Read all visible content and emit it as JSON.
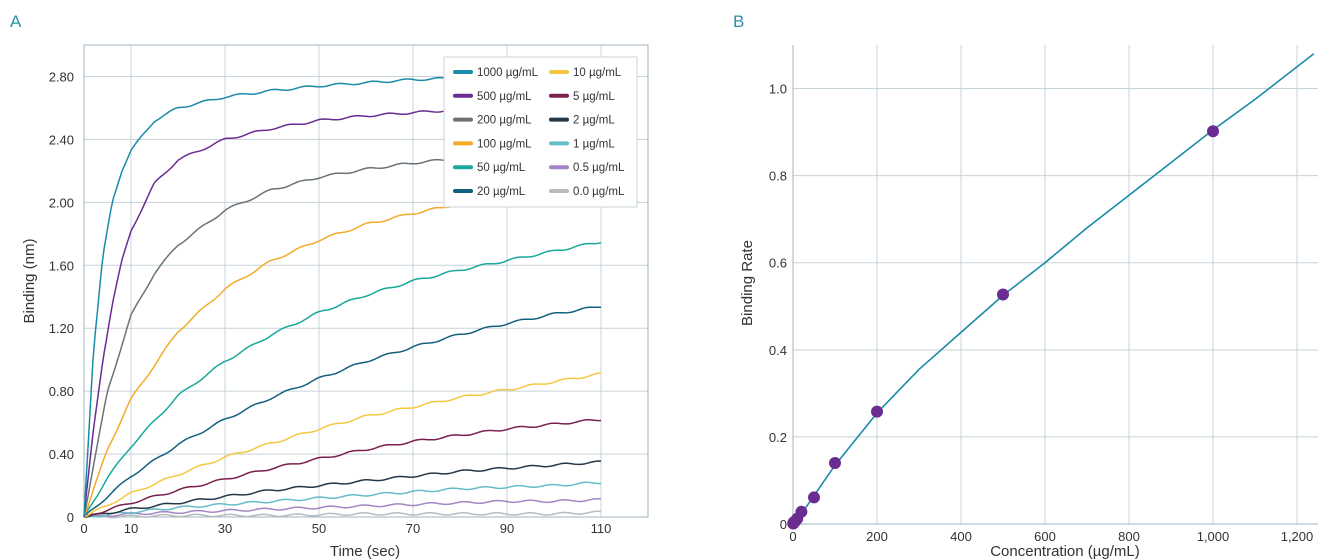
{
  "panels": {
    "a_label": "A",
    "b_label": "B"
  },
  "chart_data": [
    {
      "type": "line",
      "panel": "A",
      "xlabel": "Time (sec)",
      "ylabel": "Binding (nm)",
      "xlim": [
        0,
        120
      ],
      "ylim": [
        0,
        3.0
      ],
      "x_ticks": [
        0,
        10,
        30,
        50,
        70,
        90,
        110
      ],
      "x_tick_labels": [
        "0",
        "10",
        "30",
        "50",
        "70",
        "90",
        "110"
      ],
      "y_ticks": [
        0,
        0.4,
        0.8,
        1.2,
        1.6,
        2.0,
        2.4,
        2.8
      ],
      "y_tick_labels": [
        "0",
        "0.40",
        "0.80",
        "1.20",
        "1.60",
        "2.00",
        "2.40",
        "2.80"
      ],
      "grid": true,
      "legend_position": "top-right",
      "series": [
        {
          "name": "1000 µg/mL",
          "color": "#1a8aa8",
          "x": [
            0,
            2,
            4,
            6,
            8,
            10,
            15,
            20,
            30,
            40,
            50,
            60,
            70,
            80,
            90,
            100,
            110
          ],
          "y": [
            0,
            1.05,
            1.65,
            2.0,
            2.2,
            2.33,
            2.52,
            2.6,
            2.67,
            2.71,
            2.74,
            2.76,
            2.78,
            2.79,
            2.8,
            2.81,
            2.82
          ]
        },
        {
          "name": "500 µg/mL",
          "color": "#6a2c91",
          "x": [
            0,
            2,
            4,
            6,
            8,
            10,
            15,
            20,
            30,
            40,
            50,
            60,
            70,
            80,
            90,
            100,
            110
          ],
          "y": [
            0,
            0.55,
            1.0,
            1.35,
            1.62,
            1.82,
            2.12,
            2.27,
            2.4,
            2.47,
            2.52,
            2.55,
            2.57,
            2.59,
            2.6,
            2.61,
            2.62
          ]
        },
        {
          "name": "200 µg/mL",
          "color": "#6c7378",
          "x": [
            0,
            5,
            10,
            15,
            20,
            30,
            40,
            50,
            60,
            70,
            80,
            90,
            100,
            110
          ],
          "y": [
            0,
            0.8,
            1.28,
            1.55,
            1.73,
            1.95,
            2.08,
            2.16,
            2.21,
            2.25,
            2.28,
            2.31,
            2.33,
            2.35
          ]
        },
        {
          "name": "100 µg/mL",
          "color": "#f2ab2a",
          "x": [
            0,
            5,
            10,
            20,
            30,
            40,
            50,
            60,
            70,
            80,
            90,
            100,
            110
          ],
          "y": [
            0,
            0.43,
            0.75,
            1.18,
            1.45,
            1.63,
            1.76,
            1.86,
            1.93,
            1.99,
            2.04,
            2.08,
            2.11
          ]
        },
        {
          "name": "50 µg/mL",
          "color": "#1aa89a",
          "x": [
            0,
            5,
            10,
            20,
            30,
            40,
            50,
            60,
            70,
            80,
            90,
            100,
            110
          ],
          "y": [
            0,
            0.25,
            0.45,
            0.77,
            0.99,
            1.16,
            1.3,
            1.41,
            1.5,
            1.57,
            1.63,
            1.69,
            1.75
          ]
        },
        {
          "name": "20 µg/mL",
          "color": "#13607e",
          "x": [
            0,
            10,
            20,
            30,
            40,
            50,
            60,
            70,
            80,
            90,
            100,
            110
          ],
          "y": [
            0,
            0.26,
            0.46,
            0.62,
            0.76,
            0.88,
            0.99,
            1.08,
            1.16,
            1.23,
            1.29,
            1.34
          ]
        },
        {
          "name": "10 µg/mL",
          "color": "#f5c842",
          "x": [
            0,
            10,
            20,
            30,
            40,
            50,
            60,
            70,
            80,
            90,
            100,
            110
          ],
          "y": [
            0,
            0.15,
            0.27,
            0.38,
            0.47,
            0.56,
            0.64,
            0.7,
            0.76,
            0.81,
            0.86,
            0.91
          ]
        },
        {
          "name": "5 µg/mL",
          "color": "#7a1f4e",
          "x": [
            0,
            10,
            20,
            30,
            40,
            50,
            60,
            70,
            80,
            90,
            100,
            110
          ],
          "y": [
            0,
            0.09,
            0.17,
            0.24,
            0.31,
            0.37,
            0.43,
            0.48,
            0.52,
            0.56,
            0.59,
            0.62
          ]
        },
        {
          "name": "2 µg/mL",
          "color": "#263847",
          "x": [
            0,
            10,
            20,
            30,
            40,
            50,
            60,
            70,
            80,
            90,
            100,
            110
          ],
          "y": [
            0,
            0.05,
            0.09,
            0.13,
            0.17,
            0.2,
            0.23,
            0.26,
            0.29,
            0.31,
            0.33,
            0.35
          ]
        },
        {
          "name": "1 µg/mL",
          "color": "#66bcc8",
          "x": [
            0,
            10,
            20,
            30,
            40,
            50,
            60,
            70,
            80,
            90,
            100,
            110
          ],
          "y": [
            0,
            0.03,
            0.06,
            0.08,
            0.1,
            0.12,
            0.14,
            0.16,
            0.18,
            0.19,
            0.2,
            0.22
          ]
        },
        {
          "name": "0.5 µg/mL",
          "color": "#a386c4",
          "x": [
            0,
            10,
            20,
            30,
            40,
            50,
            60,
            70,
            80,
            90,
            100,
            110
          ],
          "y": [
            0,
            0.02,
            0.03,
            0.04,
            0.05,
            0.06,
            0.07,
            0.08,
            0.09,
            0.1,
            0.1,
            0.11
          ]
        },
        {
          "name": "0.0 µg/mL",
          "color": "#b8bcbf",
          "x": [
            0,
            20,
            40,
            60,
            80,
            100,
            110
          ],
          "y": [
            0,
            0.01,
            0.01,
            0.02,
            0.02,
            0.02,
            0.03
          ]
        }
      ]
    },
    {
      "type": "scatter",
      "panel": "B",
      "xlabel": "Concentration (µg/mL)",
      "ylabel": "Binding Rate",
      "xlim": [
        0,
        1250
      ],
      "ylim": [
        0,
        1.1
      ],
      "x_ticks": [
        0,
        200,
        400,
        600,
        800,
        1000,
        1200
      ],
      "x_tick_labels": [
        "0",
        "200",
        "400",
        "600",
        "800",
        "1,000",
        "1,200"
      ],
      "y_ticks": [
        0,
        0.2,
        0.4,
        0.6,
        0.8,
        1.0
      ],
      "y_tick_labels": [
        "0",
        "0.2",
        "0.4",
        "0.6",
        "0.8",
        "1.0"
      ],
      "grid": true,
      "point_color": "#6a2c91",
      "fit_color": "#1a8aa8",
      "points": {
        "x": [
          0.5,
          1,
          2,
          5,
          10,
          20,
          50,
          100,
          200,
          500,
          1000
        ],
        "y": [
          0.001,
          0.002,
          0.004,
          0.006,
          0.012,
          0.028,
          0.061,
          0.14,
          0.258,
          0.527,
          0.902
        ]
      },
      "fit": {
        "x": [
          0,
          25,
          50,
          100,
          200,
          300,
          400,
          500,
          600,
          700,
          800,
          900,
          1000,
          1100,
          1240
        ],
        "y": [
          0,
          0.03,
          0.065,
          0.135,
          0.255,
          0.355,
          0.44,
          0.525,
          0.6,
          0.68,
          0.755,
          0.83,
          0.905,
          0.975,
          1.08
        ]
      }
    }
  ]
}
